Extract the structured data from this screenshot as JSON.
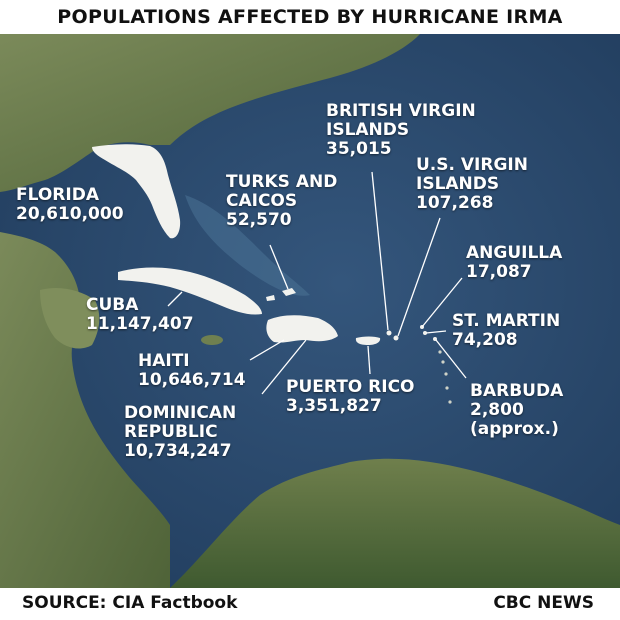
{
  "title": "POPULATIONS AFFECTED BY HURRICANE IRMA",
  "source": "SOURCE: CIA Factbook",
  "brand": "CBC NEWS",
  "colors": {
    "ocean": "#2a4a6e",
    "land_green": "#6f8050",
    "land_dark": "#4e6238",
    "highlight": "#f2f2ee",
    "label": "#ffffff"
  },
  "regions": [
    {
      "id": "florida",
      "lines": [
        "FLORIDA"
      ],
      "population": "20,610,000"
    },
    {
      "id": "turks-caicos",
      "lines": [
        "TURKS AND",
        "CAICOS"
      ],
      "population": "52,570"
    },
    {
      "id": "british-virgin-islands",
      "lines": [
        "BRITISH VIRGIN",
        "ISLANDS"
      ],
      "population": "35,015"
    },
    {
      "id": "us-virgin-islands",
      "lines": [
        "U.S. VIRGIN",
        "ISLANDS"
      ],
      "population": "107,268"
    },
    {
      "id": "anguilla",
      "lines": [
        "ANGUILLA"
      ],
      "population": "17,087"
    },
    {
      "id": "cuba",
      "lines": [
        "CUBA"
      ],
      "population": "11,147,407"
    },
    {
      "id": "st-martin",
      "lines": [
        "ST. MARTIN"
      ],
      "population": "74,208"
    },
    {
      "id": "haiti",
      "lines": [
        "HAITI"
      ],
      "population": "10,646,714"
    },
    {
      "id": "puerto-rico",
      "lines": [
        "PUERTO RICO"
      ],
      "population": "3,351,827"
    },
    {
      "id": "barbuda",
      "lines": [
        "BARBUDA"
      ],
      "population": "2,800",
      "note": "(approx.)"
    },
    {
      "id": "dominican-republic",
      "lines": [
        "DOMINICAN",
        "REPUBLIC"
      ],
      "population": "10,734,247"
    }
  ]
}
